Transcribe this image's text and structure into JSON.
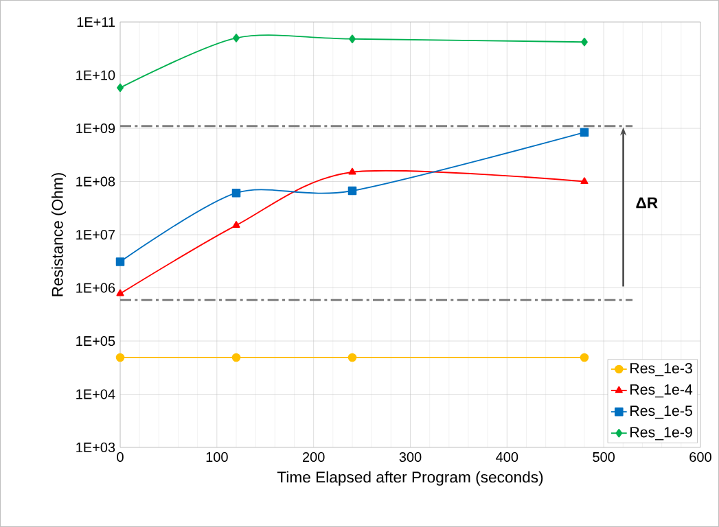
{
  "chart_data": {
    "type": "line",
    "xlabel": "Time Elapsed after Program (seconds)",
    "ylabel": "Resistance  (Ohm)",
    "x": [
      0,
      120,
      240,
      480
    ],
    "series": [
      {
        "name": "Res_1e-3",
        "color": "#ffc000",
        "marker": "circle",
        "values": [
          49000,
          49000,
          49000,
          49000
        ]
      },
      {
        "name": "Res_1e-4",
        "color": "#ff0000",
        "marker": "triangle",
        "values": [
          780000,
          15000000,
          150000000,
          100000000
        ]
      },
      {
        "name": "Res_1e-5",
        "color": "#0070c0",
        "marker": "square",
        "values": [
          3100000,
          61000000,
          67000000,
          840000000
        ]
      },
      {
        "name": "Res_1e-9",
        "color": "#00b050",
        "marker": "diamond",
        "values": [
          5800000000,
          50000000000,
          48000000000,
          42000000000
        ]
      }
    ],
    "log": "y",
    "grid": true,
    "legend": "bottom right",
    "xlim": [
      0,
      600
    ],
    "xticks": [
      0,
      100,
      200,
      300,
      400,
      500,
      600
    ],
    "ylim": [
      1000,
      100000000000
    ],
    "yticks": [
      {
        "value": 1000,
        "label": "1E+03"
      },
      {
        "value": 10000,
        "label": "1E+04"
      },
      {
        "value": 100000,
        "label": "1E+05"
      },
      {
        "value": 1000000,
        "label": "1E+06"
      },
      {
        "value": 10000000,
        "label": "1E+07"
      },
      {
        "value": 100000000,
        "label": "1E+08"
      },
      {
        "value": 1000000000,
        "label": "1E+09"
      },
      {
        "value": 10000000000,
        "label": "1E+10"
      },
      {
        "value": 100000000000,
        "label": "1E+11"
      }
    ],
    "ref_lines": [
      {
        "axis": "y",
        "value": 1100000000,
        "color": "#808080",
        "line_style": "dashdot"
      },
      {
        "axis": "y",
        "value": 590000,
        "color": "#808080",
        "line_style": "dashdot"
      }
    ],
    "annotations": [
      "ΔR"
    ]
  }
}
